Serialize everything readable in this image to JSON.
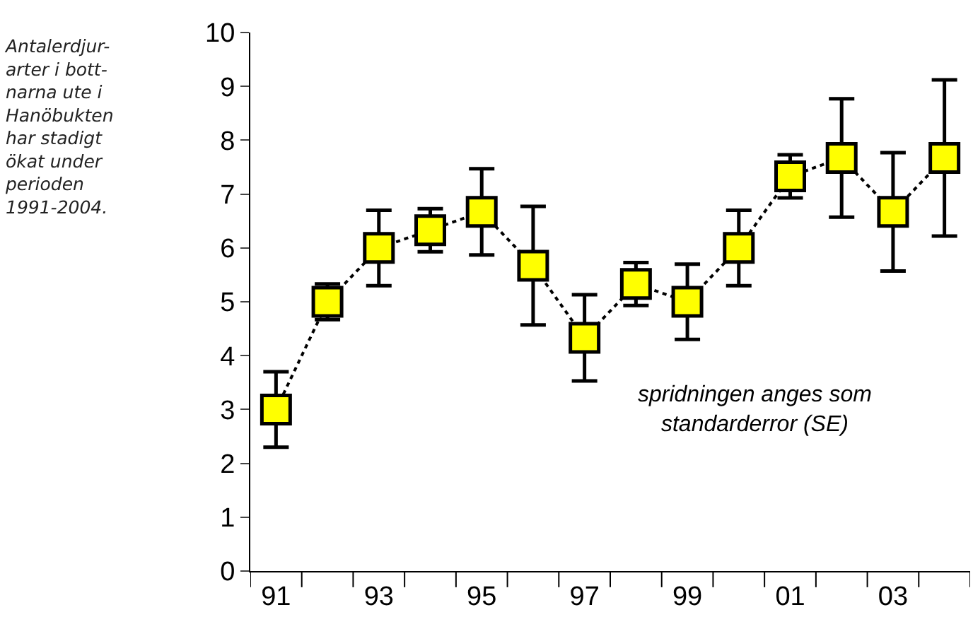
{
  "chart_data": {
    "type": "line",
    "categories": [
      "91",
      null,
      "93",
      null,
      "95",
      null,
      "97",
      null,
      "99",
      null,
      "01",
      null,
      "03",
      null
    ],
    "series": [
      {
        "color": "#ffff00",
        "values": [
          3.0,
          5.0,
          6.0,
          6.33,
          6.67,
          5.67,
          4.33,
          5.33,
          5.0,
          6.0,
          7.33,
          7.67,
          6.67,
          7.67
        ],
        "errors": [
          0.7,
          0.33,
          0.7,
          0.4,
          0.8,
          1.1,
          0.8,
          0.4,
          0.7,
          0.7,
          0.4,
          1.1,
          1.1,
          1.45
        ]
      }
    ],
    "ylim": [
      0,
      10
    ],
    "yticks": [
      0,
      1,
      2,
      3,
      4,
      5,
      6,
      7,
      8,
      9,
      10
    ],
    "marker": "square",
    "line_style": "dotted",
    "legend": false,
    "annotations": [
      "Antalerdjur-\narter i bott-\nnarna ute i\nHanöbukten\nhar stadigt\nökat under\nperioden\n1991-2004.",
      "spridningen anges som\nstandarderror (SE)"
    ]
  }
}
